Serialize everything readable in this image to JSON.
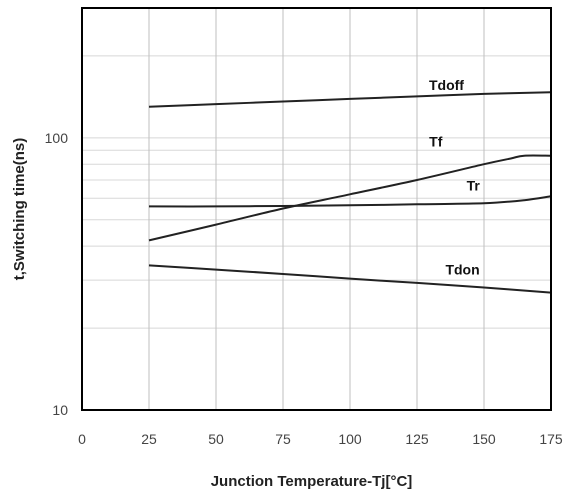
{
  "chart_data": {
    "type": "line",
    "title": "",
    "xlabel": "Junction Temperature-Tj[°C]",
    "ylabel": "t,Switching time(ns)",
    "x_scale": "linear",
    "y_scale": "log",
    "xlim": [
      0,
      175
    ],
    "ylim": [
      10,
      300
    ],
    "x_ticks": [
      0,
      25,
      50,
      75,
      100,
      125,
      150,
      175
    ],
    "y_ticks": [
      10,
      100
    ],
    "grid": true,
    "legend": "none (series labelled directly on curves)",
    "series": [
      {
        "name": "Tdoff",
        "x": [
          25,
          50,
          75,
          100,
          125,
          150,
          175
        ],
        "y": [
          130,
          133,
          136,
          139,
          142,
          145,
          147
        ]
      },
      {
        "name": "Tf",
        "x": [
          25,
          50,
          75,
          100,
          125,
          150,
          160,
          165,
          175
        ],
        "y": [
          42,
          48,
          55,
          62,
          70,
          80,
          84,
          86,
          86
        ]
      },
      {
        "name": "Tr",
        "x": [
          25,
          50,
          75,
          100,
          125,
          150,
          165,
          175
        ],
        "y": [
          56,
          56,
          56.2,
          56.5,
          57,
          57.5,
          59,
          61
        ]
      },
      {
        "name": "Tdon",
        "x": [
          25,
          50,
          75,
          100,
          125,
          150,
          175
        ],
        "y": [
          34,
          32.8,
          31.6,
          30.4,
          29.3,
          28.2,
          27
        ]
      }
    ]
  },
  "colors": {
    "line": "#222222",
    "grid": "#d8d8d8",
    "frame": "#000000",
    "vertical_grid": "#bfbfbf"
  }
}
